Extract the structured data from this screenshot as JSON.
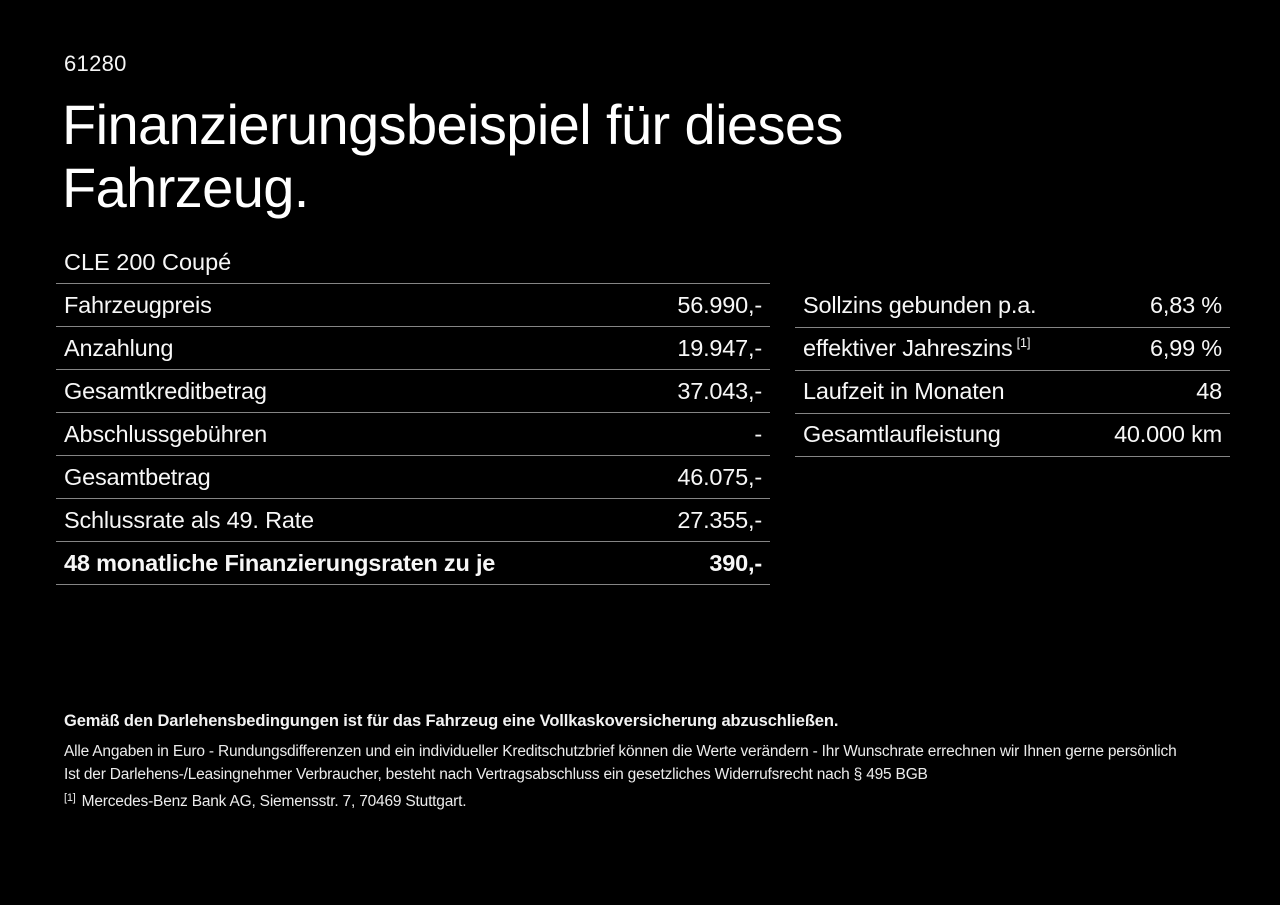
{
  "colors": {
    "background": "#000000",
    "text": "#ffffff",
    "divider": "#858585"
  },
  "header": {
    "code": "61280",
    "title_line1": "Finanzierungsbeispiel für dieses",
    "title_line2": "Fahrzeug."
  },
  "finance_table": {
    "model": "CLE 200 Coupé",
    "rows": [
      {
        "label": "Fahrzeugpreis",
        "value": "56.990,-",
        "bold": false
      },
      {
        "label": "Anzahlung",
        "value": "19.947,-",
        "bold": false
      },
      {
        "label": "Gesamtkreditbetrag",
        "value": "37.043,-",
        "bold": false
      },
      {
        "label": "Abschlussgebühren",
        "value": "-",
        "bold": false
      },
      {
        "label": "Gesamtbetrag",
        "value": "46.075,-",
        "bold": false
      },
      {
        "label": "Schlussrate als 49. Rate",
        "value": "27.355,-",
        "bold": false
      },
      {
        "label": "48 monatliche Finanzierungsraten zu je",
        "value": "390,-",
        "bold": true
      }
    ]
  },
  "conditions_table": {
    "rows": [
      {
        "label": "Sollzins gebunden p.a.",
        "sup": "",
        "value": "6,83 %"
      },
      {
        "label": "effektiver Jahreszins",
        "sup": "[1]",
        "value": "6,99 %"
      },
      {
        "label": "Laufzeit in Monaten",
        "sup": "",
        "value": "48"
      },
      {
        "label": "Gesamtlaufleistung",
        "sup": "",
        "value": "40.000 km"
      }
    ]
  },
  "footer": {
    "insurance_note": "Gemäß den Darlehensbedingungen ist für das Fahrzeug eine Vollkaskoversicherung abzuschließen.",
    "note_line1": "Alle Angaben in Euro - Rundungsdifferenzen und ein individueller Kreditschutzbrief können die Werte verändern - Ihr Wunschrate errechnen wir Ihnen gerne persönlich",
    "note_line2": "Ist der Darlehens-/Leasingnehmer Verbraucher, besteht nach Vertragsabschluss ein gesetzliches Widerrufsrecht nach § 495 BGB",
    "footnote_marker": "[1]",
    "footnote_text": "Mercedes-Benz Bank AG, Siemensstr. 7, 70469 Stuttgart."
  }
}
